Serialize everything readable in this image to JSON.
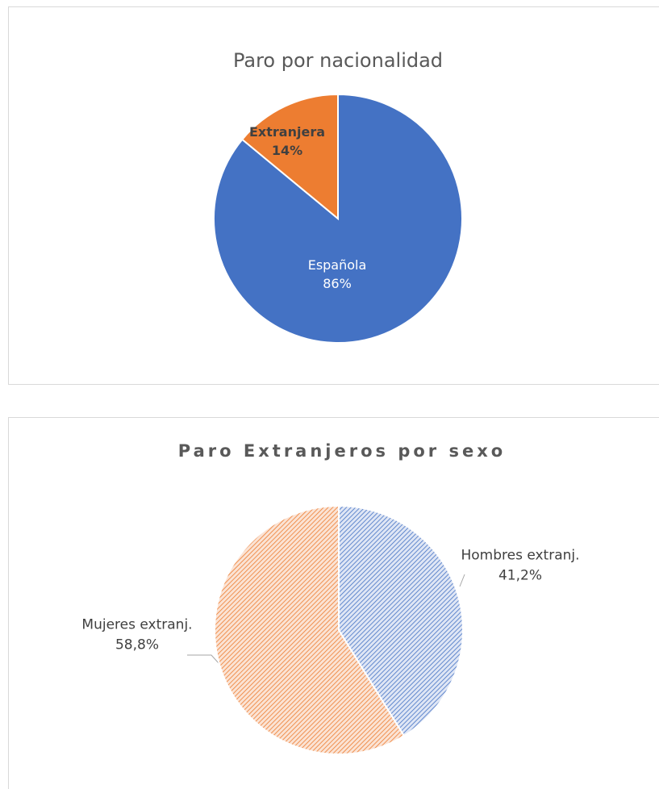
{
  "chart_data": [
    {
      "type": "pie",
      "title": "Paro por nacionalidad",
      "categories": [
        "Española",
        "Extranjera"
      ],
      "values": [
        86,
        14
      ],
      "value_labels": [
        "86%",
        "14%"
      ],
      "colors": [
        "#4472c4",
        "#ed7d31"
      ]
    },
    {
      "type": "pie",
      "title": "Paro Extranjeros por sexo",
      "categories": [
        "Hombres extranj.",
        "Mujeres extranj."
      ],
      "values": [
        41.2,
        58.8
      ],
      "value_labels": [
        "41,2%",
        "58,8%"
      ],
      "colors": [
        "#4472c4",
        "#ed7d31"
      ]
    }
  ]
}
